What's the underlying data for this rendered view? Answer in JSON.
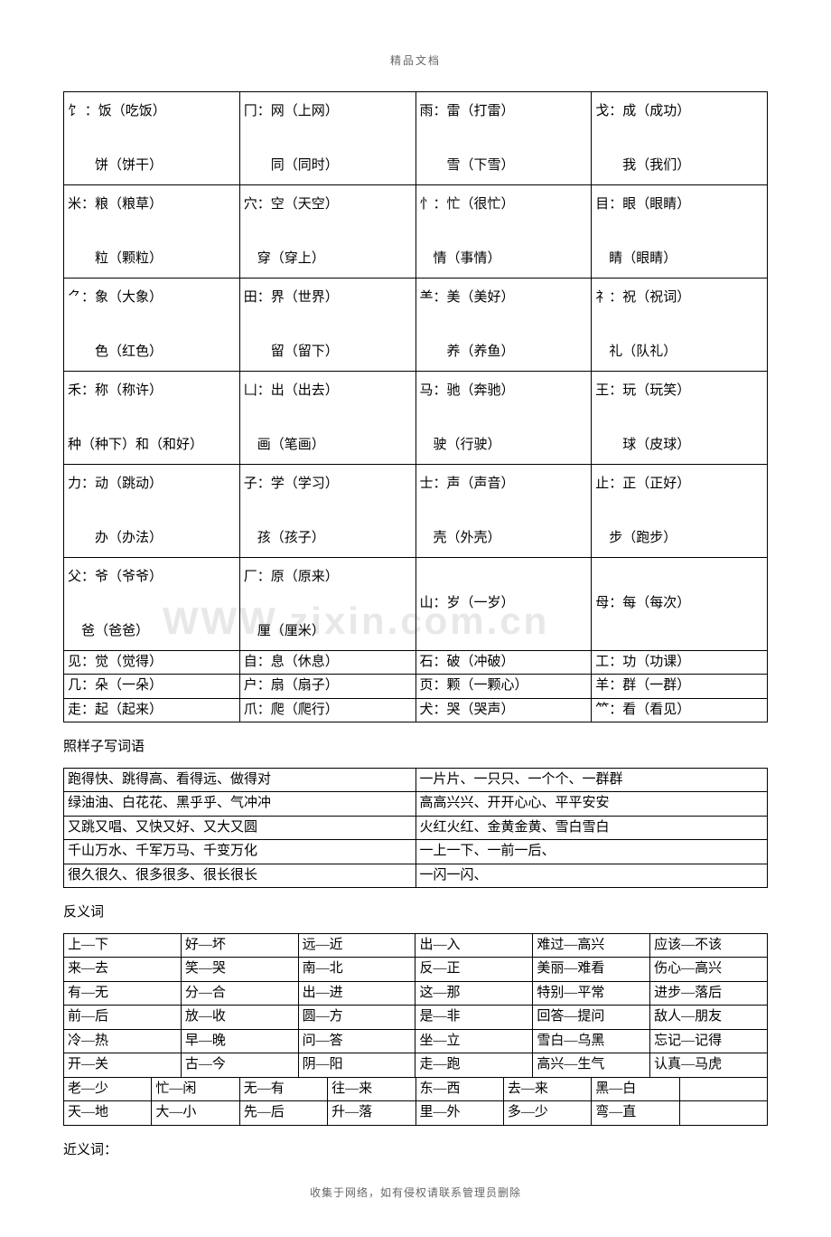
{
  "header": "精品文档",
  "footer": "收集于网络，如有侵权请联系管理员删除",
  "watermark": "WWW.zixin.com.cn",
  "radicals": {
    "rows": [
      [
        "饣 ：饭（吃饭）\n\n　　饼（饼干）",
        "冂：网（上网）\n\n　　同（同时）",
        "雨：雷（打雷）\n\n　　雪（下雪）",
        "戈：成（成功）\n\n　　我（我们）"
      ],
      [
        "米：粮（粮草）\n\n　　粒（颗粒）",
        "穴：空（天空）\n\n　穿（穿上）",
        "忄：忙（很忙）\n\n　情（事情）",
        "目：眼（眼睛）\n\n　睛（眼睛）"
      ],
      [
        "⺈：象（大象）\n\n　　色（红色）",
        "田：界（世界）\n\n　　留（留下）",
        "⺷：美（美好）\n\n　　养（养鱼）",
        "礻：祝（祝词）\n\n　礼（队礼）"
      ],
      [
        "禾：称（称许）\n\n种（种下）和（和好）",
        "凵：出（出去）\n\n　画（笔画）",
        "马：驰（奔驰）\n\n　驶（行驶）",
        "王：玩（玩笑）\n\n　　球（皮球）"
      ],
      [
        "力：动（跳动）\n\n　　办（办法）",
        "子：学（学习）\n\n　孩（孩子）",
        "士：声（声音）\n\n　壳（外壳）",
        "止：正（正好）\n\n　步（跑步）"
      ],
      [
        "父：爷（爷爷）\n\n　爸（爸爸）",
        "厂：原（原来）\n\n　厘（厘米）",
        "山：岁（一岁）",
        "母：每（每次）"
      ],
      [
        "见：觉（觉得）",
        "自：息（休息）",
        "石：破（冲破）",
        "工：功（功课）"
      ],
      [
        "几：朵（一朵）",
        "户：扇（扇子）",
        "页：颗（一颗心）",
        "羊：群（一群）"
      ],
      [
        "走：起（起来）",
        "爪：爬（爬行）",
        "犬：哭（哭声）",
        "⺮：看（看见）"
      ]
    ]
  },
  "section_patterns_title": "照样子写词语",
  "patterns": {
    "rows": [
      [
        "跑得快、跳得高、看得远、做得对",
        "一片片、一只只、一个个、一群群"
      ],
      [
        "绿油油、白花花、黑乎乎、气冲冲",
        "高高兴兴、开开心心、平平安安"
      ],
      [
        "又跳又唱、又快又好、又大又圆",
        "火红火红、金黄金黄、雪白雪白"
      ],
      [
        "千山万水、千军万马、千变万化",
        "一上一下、一前一后、"
      ],
      [
        "很久很久、很多很多、很长很长",
        "一闪一闪、"
      ]
    ]
  },
  "section_antonyms_title": "反义词",
  "antonyms6": {
    "rows": [
      [
        "上—下",
        "好—坏",
        "远—近",
        "出—入",
        "难过—高兴",
        "应该—不该"
      ],
      [
        "来—去",
        "笑—哭",
        "南—北",
        "反—正",
        "美丽—难看",
        "伤心—高兴"
      ],
      [
        "有—无",
        "分—合",
        "出—进",
        "这—那",
        "特别—平常",
        "进步—落后"
      ],
      [
        "前—后",
        "放—收",
        "圆—方",
        "是—非",
        "回答—提问",
        "敌人—朋友"
      ],
      [
        "冷—热",
        "早—晚",
        "问—答",
        "坐—立",
        "雪白—乌黑",
        "忘记—记得"
      ],
      [
        "开—关",
        "古—今",
        "阴—阳",
        "走—跑",
        "高兴—生气",
        "认真—马虎"
      ]
    ]
  },
  "antonyms8": {
    "rows": [
      [
        "老—少",
        "忙—闲",
        "无—有",
        "往—来",
        "东—西",
        "去—来",
        "黑—白",
        ""
      ],
      [
        "天—地",
        "大—小",
        "先—后",
        "升—落",
        "里—外",
        "多—少",
        "弯—直",
        ""
      ]
    ]
  },
  "section_synonyms_title": "近义词："
}
